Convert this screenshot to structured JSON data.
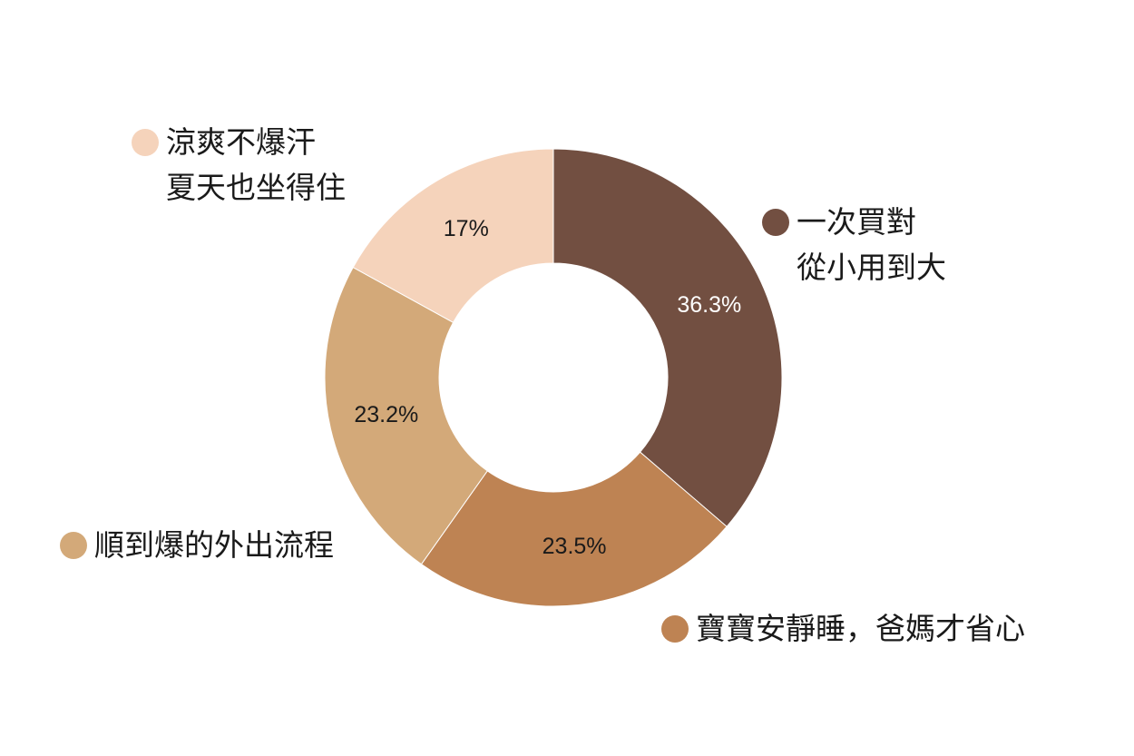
{
  "chart_data": {
    "type": "pie",
    "style": "donut",
    "slices": [
      {
        "name": "一次買對\n從小用到大",
        "value": 36.3,
        "label": "36.3%",
        "color": "#724f41",
        "label_color": "#ffffff"
      },
      {
        "name": "寶寶安靜睡，爸媽才省心",
        "value": 23.5,
        "label": "23.5%",
        "color": "#be8353",
        "label_color": "#1a1a1a"
      },
      {
        "name": "順到爆的外出流程",
        "value": 23.2,
        "label": "23.2%",
        "color": "#d3a979",
        "label_color": "#1a1a1a"
      },
      {
        "name": "涼爽不爆汗\n夏天也坐得住",
        "value": 17,
        "label": "17%",
        "color": "#f5d3bb",
        "label_color": "#1a1a1a"
      }
    ],
    "start_angle_deg": 0,
    "direction": "clockwise"
  }
}
